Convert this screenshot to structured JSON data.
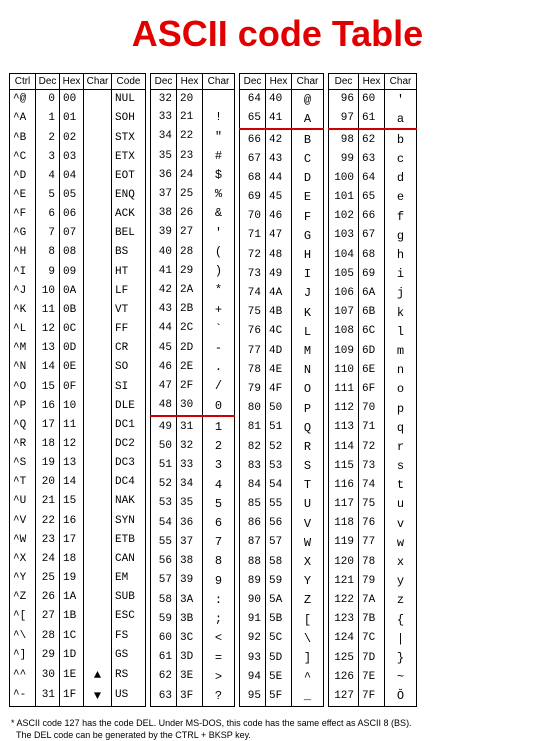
{
  "title": {
    "text": "ASCII code Table",
    "color": "#e10000",
    "fontsize": 36
  },
  "separator_color": "#c00000",
  "columns": {
    "t1": [
      "Ctrl",
      "Dec",
      "Hex",
      "Char",
      "Code"
    ],
    "t234": [
      "Dec",
      "Hex",
      "Char"
    ]
  },
  "col_widths": {
    "t1": {
      "ctrl": 26,
      "dec": 24,
      "hex": 24,
      "char": 28,
      "code": 34
    },
    "t2": {
      "dec": 26,
      "hex": 26,
      "char": 32
    },
    "t3": {
      "dec": 26,
      "hex": 26,
      "char": 32
    },
    "t4": {
      "dec": 30,
      "hex": 26,
      "char": 32
    }
  },
  "t1": [
    {
      "ctrl": "^@",
      "dec": 0,
      "hex": "00",
      "char": "",
      "code": "NUL"
    },
    {
      "ctrl": "^A",
      "dec": 1,
      "hex": "01",
      "char": "",
      "code": "SOH"
    },
    {
      "ctrl": "^B",
      "dec": 2,
      "hex": "02",
      "char": "",
      "code": "STX"
    },
    {
      "ctrl": "^C",
      "dec": 3,
      "hex": "03",
      "char": "",
      "code": "ETX"
    },
    {
      "ctrl": "^D",
      "dec": 4,
      "hex": "04",
      "char": "",
      "code": "EOT"
    },
    {
      "ctrl": "^E",
      "dec": 5,
      "hex": "05",
      "char": "",
      "code": "ENQ"
    },
    {
      "ctrl": "^F",
      "dec": 6,
      "hex": "06",
      "char": "",
      "code": "ACK"
    },
    {
      "ctrl": "^G",
      "dec": 7,
      "hex": "07",
      "char": "",
      "code": "BEL"
    },
    {
      "ctrl": "^H",
      "dec": 8,
      "hex": "08",
      "char": "",
      "code": "BS"
    },
    {
      "ctrl": "^I",
      "dec": 9,
      "hex": "09",
      "char": "",
      "code": "HT"
    },
    {
      "ctrl": "^J",
      "dec": 10,
      "hex": "0A",
      "char": "",
      "code": "LF"
    },
    {
      "ctrl": "^K",
      "dec": 11,
      "hex": "0B",
      "char": "",
      "code": "VT"
    },
    {
      "ctrl": "^L",
      "dec": 12,
      "hex": "0C",
      "char": "",
      "code": "FF"
    },
    {
      "ctrl": "^M",
      "dec": 13,
      "hex": "0D",
      "char": "",
      "code": "CR"
    },
    {
      "ctrl": "^N",
      "dec": 14,
      "hex": "0E",
      "char": "",
      "code": "SO"
    },
    {
      "ctrl": "^O",
      "dec": 15,
      "hex": "0F",
      "char": "",
      "code": "SI"
    },
    {
      "ctrl": "^P",
      "dec": 16,
      "hex": "10",
      "char": "",
      "code": "DLE"
    },
    {
      "ctrl": "^Q",
      "dec": 17,
      "hex": "11",
      "char": "",
      "code": "DC1"
    },
    {
      "ctrl": "^R",
      "dec": 18,
      "hex": "12",
      "char": "",
      "code": "DC2"
    },
    {
      "ctrl": "^S",
      "dec": 19,
      "hex": "13",
      "char": "",
      "code": "DC3"
    },
    {
      "ctrl": "^T",
      "dec": 20,
      "hex": "14",
      "char": "",
      "code": "DC4"
    },
    {
      "ctrl": "^U",
      "dec": 21,
      "hex": "15",
      "char": "",
      "code": "NAK"
    },
    {
      "ctrl": "^V",
      "dec": 22,
      "hex": "16",
      "char": "",
      "code": "SYN"
    },
    {
      "ctrl": "^W",
      "dec": 23,
      "hex": "17",
      "char": "",
      "code": "ETB"
    },
    {
      "ctrl": "^X",
      "dec": 24,
      "hex": "18",
      "char": "",
      "code": "CAN"
    },
    {
      "ctrl": "^Y",
      "dec": 25,
      "hex": "19",
      "char": "",
      "code": "EM"
    },
    {
      "ctrl": "^Z",
      "dec": 26,
      "hex": "1A",
      "char": "",
      "code": "SUB"
    },
    {
      "ctrl": "^[",
      "dec": 27,
      "hex": "1B",
      "char": "",
      "code": "ESC"
    },
    {
      "ctrl": "^\\",
      "dec": 28,
      "hex": "1C",
      "char": "",
      "code": "FS"
    },
    {
      "ctrl": "^]",
      "dec": 29,
      "hex": "1D",
      "char": "",
      "code": "GS"
    },
    {
      "ctrl": "^^",
      "dec": 30,
      "hex": "1E",
      "char": "▲",
      "code": "RS"
    },
    {
      "ctrl": "^-",
      "dec": 31,
      "hex": "1F",
      "char": "▼",
      "code": "US"
    }
  ],
  "t2": [
    {
      "dec": 32,
      "hex": "20",
      "char": ""
    },
    {
      "dec": 33,
      "hex": "21",
      "char": "!"
    },
    {
      "dec": 34,
      "hex": "22",
      "char": "\""
    },
    {
      "dec": 35,
      "hex": "23",
      "char": "#"
    },
    {
      "dec": 36,
      "hex": "24",
      "char": "$"
    },
    {
      "dec": 37,
      "hex": "25",
      "char": "%"
    },
    {
      "dec": 38,
      "hex": "26",
      "char": "&"
    },
    {
      "dec": 39,
      "hex": "27",
      "char": "'"
    },
    {
      "dec": 40,
      "hex": "28",
      "char": "("
    },
    {
      "dec": 41,
      "hex": "29",
      "char": ")"
    },
    {
      "dec": 42,
      "hex": "2A",
      "char": "*"
    },
    {
      "dec": 43,
      "hex": "2B",
      "char": "+"
    },
    {
      "dec": 44,
      "hex": "2C",
      "char": "`"
    },
    {
      "dec": 45,
      "hex": "2D",
      "char": "-"
    },
    {
      "dec": 46,
      "hex": "2E",
      "char": "."
    },
    {
      "dec": 47,
      "hex": "2F",
      "char": "/"
    },
    {
      "dec": 48,
      "hex": "30",
      "char": "0"
    },
    {
      "dec": 49,
      "hex": "31",
      "char": "1",
      "sep": true
    },
    {
      "dec": 50,
      "hex": "32",
      "char": "2"
    },
    {
      "dec": 51,
      "hex": "33",
      "char": "3"
    },
    {
      "dec": 52,
      "hex": "34",
      "char": "4"
    },
    {
      "dec": 53,
      "hex": "35",
      "char": "5"
    },
    {
      "dec": 54,
      "hex": "36",
      "char": "6"
    },
    {
      "dec": 55,
      "hex": "37",
      "char": "7"
    },
    {
      "dec": 56,
      "hex": "38",
      "char": "8"
    },
    {
      "dec": 57,
      "hex": "39",
      "char": "9"
    },
    {
      "dec": 58,
      "hex": "3A",
      "char": ":"
    },
    {
      "dec": 59,
      "hex": "3B",
      "char": ";"
    },
    {
      "dec": 60,
      "hex": "3C",
      "char": "<"
    },
    {
      "dec": 61,
      "hex": "3D",
      "char": "="
    },
    {
      "dec": 62,
      "hex": "3E",
      "char": ">"
    },
    {
      "dec": 63,
      "hex": "3F",
      "char": "?"
    }
  ],
  "t3": [
    {
      "dec": 64,
      "hex": "40",
      "char": "@"
    },
    {
      "dec": 65,
      "hex": "41",
      "char": "A"
    },
    {
      "dec": 66,
      "hex": "42",
      "char": "B",
      "sep": true
    },
    {
      "dec": 67,
      "hex": "43",
      "char": "C"
    },
    {
      "dec": 68,
      "hex": "44",
      "char": "D"
    },
    {
      "dec": 69,
      "hex": "45",
      "char": "E"
    },
    {
      "dec": 70,
      "hex": "46",
      "char": "F"
    },
    {
      "dec": 71,
      "hex": "47",
      "char": "G"
    },
    {
      "dec": 72,
      "hex": "48",
      "char": "H"
    },
    {
      "dec": 73,
      "hex": "49",
      "char": "I"
    },
    {
      "dec": 74,
      "hex": "4A",
      "char": "J"
    },
    {
      "dec": 75,
      "hex": "4B",
      "char": "K"
    },
    {
      "dec": 76,
      "hex": "4C",
      "char": "L"
    },
    {
      "dec": 77,
      "hex": "4D",
      "char": "M"
    },
    {
      "dec": 78,
      "hex": "4E",
      "char": "N"
    },
    {
      "dec": 79,
      "hex": "4F",
      "char": "O"
    },
    {
      "dec": 80,
      "hex": "50",
      "char": "P"
    },
    {
      "dec": 81,
      "hex": "51",
      "char": "Q"
    },
    {
      "dec": 82,
      "hex": "52",
      "char": "R"
    },
    {
      "dec": 83,
      "hex": "53",
      "char": "S"
    },
    {
      "dec": 84,
      "hex": "54",
      "char": "T"
    },
    {
      "dec": 85,
      "hex": "55",
      "char": "U"
    },
    {
      "dec": 86,
      "hex": "56",
      "char": "V"
    },
    {
      "dec": 87,
      "hex": "57",
      "char": "W"
    },
    {
      "dec": 88,
      "hex": "58",
      "char": "X"
    },
    {
      "dec": 89,
      "hex": "59",
      "char": "Y"
    },
    {
      "dec": 90,
      "hex": "5A",
      "char": "Z"
    },
    {
      "dec": 91,
      "hex": "5B",
      "char": "["
    },
    {
      "dec": 92,
      "hex": "5C",
      "char": "\\"
    },
    {
      "dec": 93,
      "hex": "5D",
      "char": "]"
    },
    {
      "dec": 94,
      "hex": "5E",
      "char": "^"
    },
    {
      "dec": 95,
      "hex": "5F",
      "char": "_"
    }
  ],
  "t4": [
    {
      "dec": 96,
      "hex": "60",
      "char": "'"
    },
    {
      "dec": 97,
      "hex": "61",
      "char": "a"
    },
    {
      "dec": 98,
      "hex": "62",
      "char": "b",
      "sep": true
    },
    {
      "dec": 99,
      "hex": "63",
      "char": "c"
    },
    {
      "dec": 100,
      "hex": "64",
      "char": "d"
    },
    {
      "dec": 101,
      "hex": "65",
      "char": "e"
    },
    {
      "dec": 102,
      "hex": "66",
      "char": "f"
    },
    {
      "dec": 103,
      "hex": "67",
      "char": "g"
    },
    {
      "dec": 104,
      "hex": "68",
      "char": "h"
    },
    {
      "dec": 105,
      "hex": "69",
      "char": "i"
    },
    {
      "dec": 106,
      "hex": "6A",
      "char": "j"
    },
    {
      "dec": 107,
      "hex": "6B",
      "char": "k"
    },
    {
      "dec": 108,
      "hex": "6C",
      "char": "l"
    },
    {
      "dec": 109,
      "hex": "6D",
      "char": "m"
    },
    {
      "dec": 110,
      "hex": "6E",
      "char": "n"
    },
    {
      "dec": 111,
      "hex": "6F",
      "char": "o"
    },
    {
      "dec": 112,
      "hex": "70",
      "char": "p"
    },
    {
      "dec": 113,
      "hex": "71",
      "char": "q"
    },
    {
      "dec": 114,
      "hex": "72",
      "char": "r"
    },
    {
      "dec": 115,
      "hex": "73",
      "char": "s"
    },
    {
      "dec": 116,
      "hex": "74",
      "char": "t"
    },
    {
      "dec": 117,
      "hex": "75",
      "char": "u"
    },
    {
      "dec": 118,
      "hex": "76",
      "char": "v"
    },
    {
      "dec": 119,
      "hex": "77",
      "char": "w"
    },
    {
      "dec": 120,
      "hex": "78",
      "char": "x"
    },
    {
      "dec": 121,
      "hex": "79",
      "char": "y"
    },
    {
      "dec": 122,
      "hex": "7A",
      "char": "z"
    },
    {
      "dec": 123,
      "hex": "7B",
      "char": "{"
    },
    {
      "dec": 124,
      "hex": "7C",
      "char": "|"
    },
    {
      "dec": 125,
      "hex": "7D",
      "char": "}"
    },
    {
      "dec": 126,
      "hex": "7E",
      "char": "~"
    },
    {
      "dec": 127,
      "hex": "7F",
      "char": "Ŏ"
    }
  ],
  "footnote": {
    "marker": "*",
    "line1": "ASCII code 127 has the code DEL. Under MS-DOS, this code has the same effect as ASCII 8 (BS).",
    "line2": "The DEL code can be generated by the CTRL + BKSP key."
  }
}
